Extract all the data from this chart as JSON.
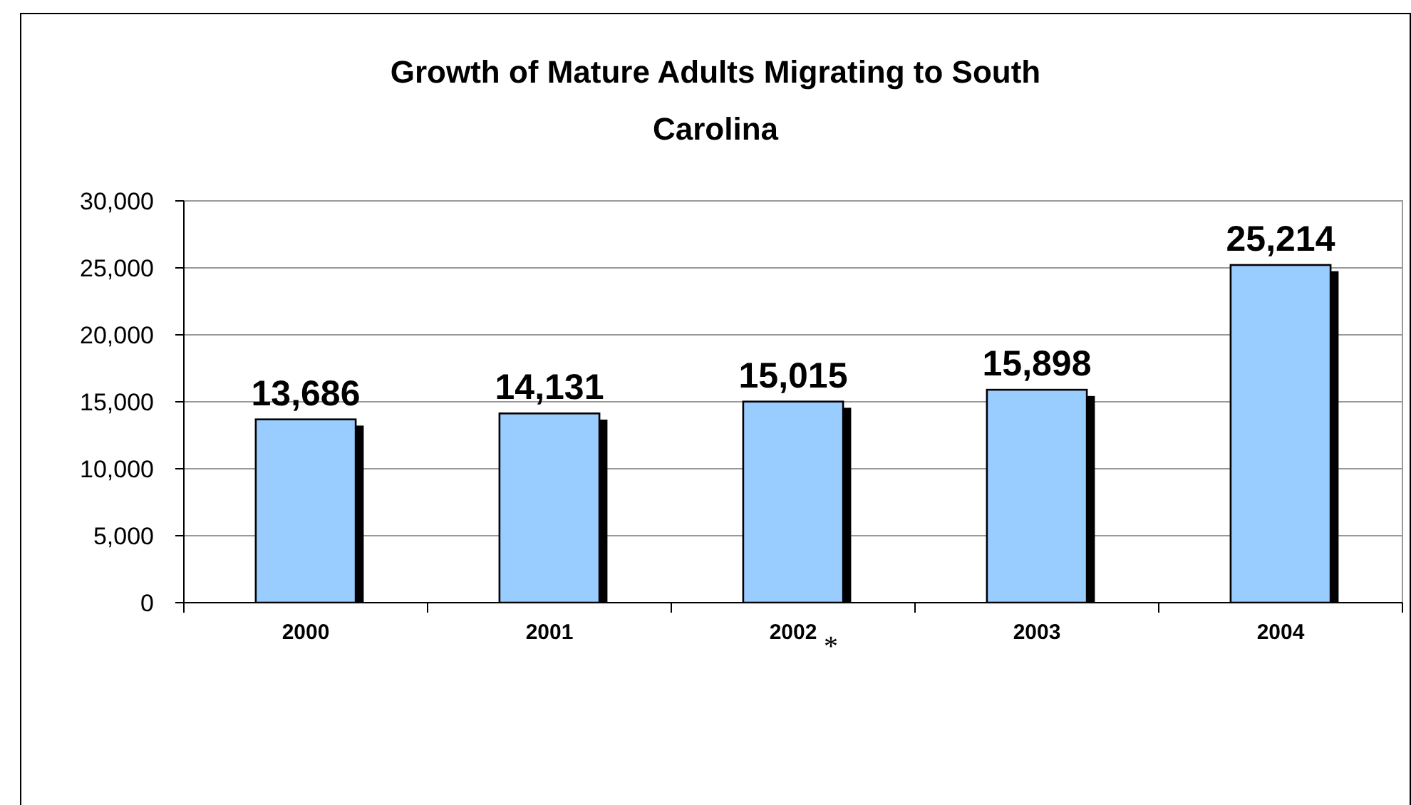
{
  "chart_data": {
    "type": "bar",
    "title": "Growth of Mature Adults Migrating to South Carolina",
    "categories": [
      "2000",
      "2001",
      "2002",
      "2003",
      "2004"
    ],
    "values": [
      13686,
      14131,
      15015,
      15898,
      25214
    ],
    "color": "#99ccff",
    "value_labels": [
      "13,686",
      "14,131",
      "15,015",
      "15,898",
      "25,214"
    ],
    "ylim": [
      0,
      30000
    ],
    "yticks": [
      {
        "value": 0,
        "label": "0"
      },
      {
        "value": 5000,
        "label": "5,000"
      },
      {
        "value": 10000,
        "label": "10,000"
      },
      {
        "value": 15000,
        "label": "15,000"
      },
      {
        "value": 20000,
        "label": "20,000"
      },
      {
        "value": 25000,
        "label": "25,000"
      },
      {
        "value": 30000,
        "label": "30,000"
      }
    ],
    "grid": "y",
    "annotations": [
      "*"
    ]
  }
}
